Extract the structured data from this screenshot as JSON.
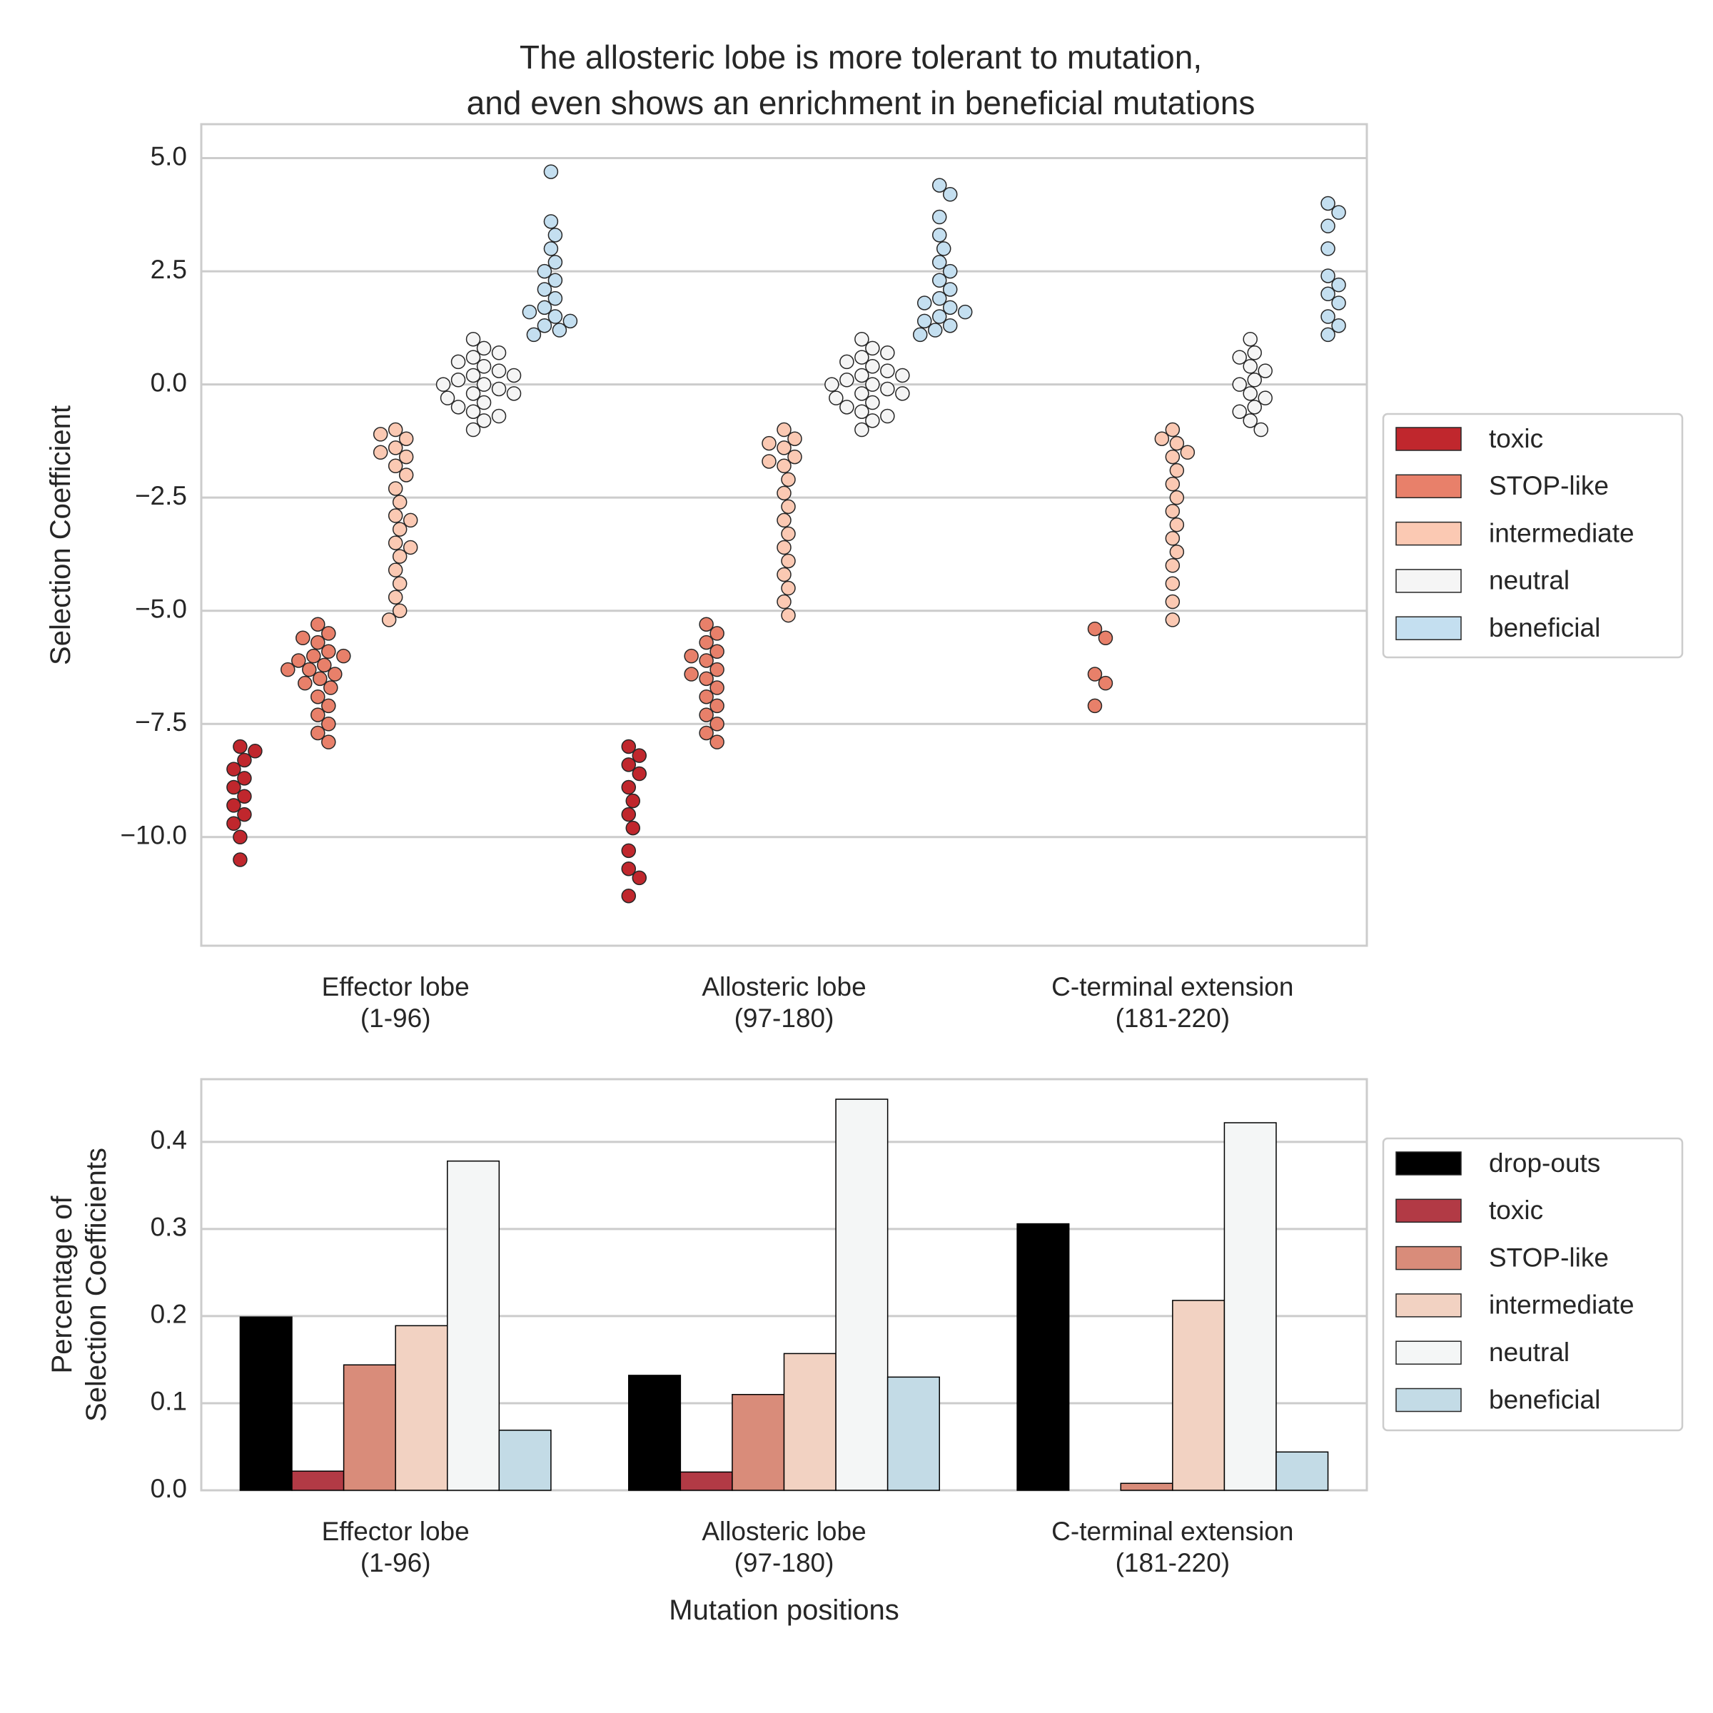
{
  "chart_data": [
    {
      "type": "strip",
      "title": "The allosteric lobe is more tolerant to mutation,\nand even shows an enrichment in beneficial mutations",
      "ylabel": "Selection Coefficient",
      "categories": [
        "Effector lobe\n(1-96)",
        "Allosteric lobe\n(97-180)",
        "C-terminal extension\n(181-220)"
      ],
      "ylim": [
        -12.4,
        5.75
      ],
      "yticks": [
        {
          "value": -10,
          "label": "−10.0"
        },
        {
          "value": -7.5,
          "label": "−7.5"
        },
        {
          "value": -5,
          "label": "−5.0"
        },
        {
          "value": -2.5,
          "label": "−2.5"
        },
        {
          "value": 0,
          "label": "0.0"
        },
        {
          "value": 2.5,
          "label": "2.5"
        },
        {
          "value": 5,
          "label": "5.0"
        }
      ],
      "grid": true,
      "legend": "right",
      "series": [
        {
          "name": "toxic",
          "color": "#c0272d",
          "values": [
            [
              -8.0,
              -8.1,
              -8.3,
              -8.5,
              -8.7,
              -8.9,
              -9.1,
              -9.3,
              -9.5,
              -9.7,
              -10.0,
              -10.5
            ],
            [
              -8.0,
              -8.2,
              -8.4,
              -8.6,
              -8.9,
              -9.2,
              -9.5,
              -9.8,
              -10.3,
              -10.7,
              -10.9,
              -11.3
            ],
            []
          ]
        },
        {
          "name": "STOP-like",
          "color": "#e8806a",
          "values": [
            [
              -5.3,
              -5.5,
              -5.7,
              -5.9,
              -6.0,
              -6.1,
              -6.2,
              -6.3,
              -6.4,
              -6.5,
              -6.6,
              -6.7,
              -6.9,
              -7.1,
              -7.3,
              -7.5,
              -7.7,
              -7.9,
              -6.0,
              -6.3,
              -5.6
            ],
            [
              -5.3,
              -5.5,
              -5.7,
              -5.9,
              -6.1,
              -6.3,
              -6.5,
              -6.7,
              -6.9,
              -7.1,
              -7.3,
              -7.5,
              -7.7,
              -7.9,
              -6.0,
              -6.4
            ],
            [
              -5.4,
              -5.6,
              -6.4,
              -6.6,
              -7.1
            ]
          ]
        },
        {
          "name": "intermediate",
          "color": "#fbc9b3",
          "values": [
            [
              -1.0,
              -1.2,
              -1.4,
              -1.6,
              -1.8,
              -2.0,
              -2.3,
              -2.6,
              -2.9,
              -3.2,
              -3.5,
              -3.8,
              -4.1,
              -4.4,
              -4.7,
              -5.0,
              -5.2,
              -1.1,
              -1.5,
              -3.0,
              -3.6
            ],
            [
              -1.0,
              -1.2,
              -1.4,
              -1.6,
              -1.8,
              -2.1,
              -2.4,
              -2.7,
              -3.0,
              -3.3,
              -3.6,
              -3.9,
              -4.2,
              -4.5,
              -4.8,
              -5.1,
              -1.3,
              -1.7
            ],
            [
              -1.0,
              -1.3,
              -1.6,
              -1.9,
              -2.2,
              -2.5,
              -2.8,
              -3.1,
              -3.4,
              -3.7,
              -4.0,
              -4.4,
              -4.8,
              -5.2,
              -1.2,
              -1.5
            ]
          ]
        },
        {
          "name": "neutral",
          "color": "#f5f5f5",
          "values": [
            [
              1.0,
              0.8,
              0.6,
              0.4,
              0.2,
              0.0,
              -0.2,
              -0.4,
              -0.6,
              -0.8,
              -1.0,
              0.5,
              0.1,
              -0.1,
              -0.5,
              0.3,
              -0.3,
              0.7,
              -0.7,
              0.0,
              0.2,
              -0.2
            ],
            [
              1.0,
              0.8,
              0.6,
              0.4,
              0.2,
              0.0,
              -0.2,
              -0.4,
              -0.6,
              -0.8,
              -1.0,
              0.5,
              0.1,
              -0.1,
              -0.5,
              0.3,
              -0.3,
              0.7,
              -0.7,
              0.0,
              0.2,
              -0.2
            ],
            [
              1.0,
              0.7,
              0.4,
              0.1,
              -0.2,
              -0.5,
              -0.8,
              -1.0,
              0.0,
              -0.3,
              0.3,
              0.6,
              -0.6
            ]
          ]
        },
        {
          "name": "beneficial",
          "color": "#c4dff0",
          "values": [
            [
              4.7,
              3.6,
              3.3,
              3.0,
              2.7,
              2.5,
              2.3,
              2.1,
              1.9,
              1.7,
              1.5,
              1.3,
              1.2,
              1.1,
              1.4,
              1.6
            ],
            [
              4.4,
              4.2,
              3.7,
              3.3,
              3.0,
              2.7,
              2.5,
              2.3,
              2.1,
              1.9,
              1.7,
              1.5,
              1.3,
              1.2,
              1.1,
              1.4,
              1.6,
              1.8
            ],
            [
              4.0,
              3.8,
              3.5,
              3.0,
              2.4,
              2.2,
              2.0,
              1.8,
              1.5,
              1.3,
              1.1
            ]
          ]
        }
      ]
    },
    {
      "type": "bar",
      "ylabel": "Percentage of\nSelection Coefficients",
      "xlabel": "Mutation positions",
      "categories": [
        "Effector lobe\n(1-96)",
        "Allosteric lobe\n(97-180)",
        "C-terminal extension\n(181-220)"
      ],
      "ylim": [
        0,
        0.472
      ],
      "yticks": [
        {
          "value": 0,
          "label": "0.0"
        },
        {
          "value": 0.1,
          "label": "0.1"
        },
        {
          "value": 0.2,
          "label": "0.2"
        },
        {
          "value": 0.3,
          "label": "0.3"
        },
        {
          "value": 0.4,
          "label": "0.4"
        }
      ],
      "grid": true,
      "legend": "right",
      "series": [
        {
          "name": "drop-outs",
          "color": "#000000",
          "values": [
            0.199,
            0.132,
            0.306
          ]
        },
        {
          "name": "toxic",
          "color": "#b23a45",
          "values": [
            0.022,
            0.021,
            0
          ]
        },
        {
          "name": "STOP-like",
          "color": "#d98c7a",
          "values": [
            0.144,
            0.11,
            0.008
          ]
        },
        {
          "name": "intermediate",
          "color": "#f2d2c2",
          "values": [
            0.189,
            0.157,
            0.218
          ]
        },
        {
          "name": "neutral",
          "color": "#f4f6f6",
          "values": [
            0.378,
            0.449,
            0.422
          ]
        },
        {
          "name": "beneficial",
          "color": "#c3dbe6",
          "values": [
            0.069,
            0.13,
            0.044
          ]
        }
      ]
    }
  ]
}
